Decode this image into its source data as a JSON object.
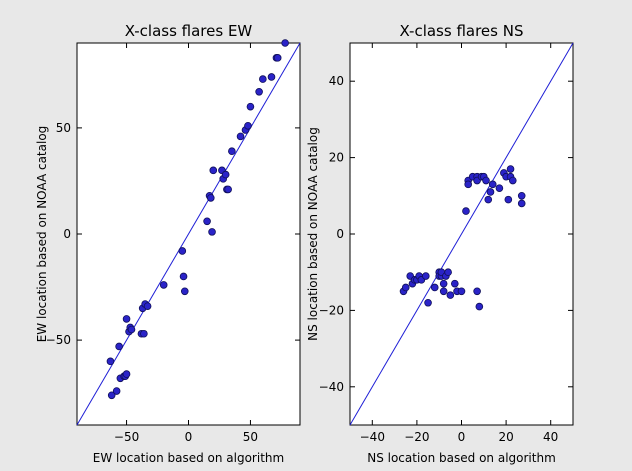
{
  "figure": {
    "background": "#e8e8e8"
  },
  "chart_data": [
    {
      "type": "scatter",
      "title": "X-class flares EW",
      "xlabel": "EW location based on algorithm",
      "ylabel": "EW location based on NOAA catalog",
      "xlim": [
        -90,
        90
      ],
      "ylim": [
        -90,
        90
      ],
      "xticks": [
        -50,
        0,
        50
      ],
      "yticks": [
        -50,
        0,
        50
      ],
      "xtick_labels": [
        "−50",
        "0",
        "50"
      ],
      "ytick_labels": [
        "−50",
        "0",
        "50"
      ],
      "reference_line": "y = x",
      "line_color": "#1f1fd6",
      "marker_color": "#2a23c8",
      "grid": false,
      "series": [
        {
          "x": [
            -63,
            -62,
            -58,
            -56,
            -55,
            -52,
            -51,
            -50,
            -50,
            -48,
            -47,
            -46,
            -38,
            -37,
            -36,
            -35,
            -33,
            -20,
            -5,
            -4,
            -3,
            15,
            17,
            18,
            19,
            20,
            27,
            28,
            30,
            31,
            32,
            35,
            42,
            46,
            48,
            50,
            57,
            60,
            67,
            71,
            72,
            78
          ],
          "y": [
            -60,
            -76,
            -74,
            -53,
            -68,
            -67,
            -67,
            -40,
            -66,
            -46,
            -44,
            -45,
            -47,
            -35,
            -47,
            -33,
            -34,
            -24,
            -8,
            -20,
            -27,
            6,
            18,
            17,
            1,
            30,
            30,
            26,
            28,
            21,
            21,
            39,
            46,
            49,
            51,
            60,
            67,
            73,
            74,
            83,
            83,
            90
          ]
        }
      ]
    },
    {
      "type": "scatter",
      "title": "X-class flares NS",
      "xlabel": "NS location based on algorithm",
      "ylabel": "NS location based on NOAA catalog",
      "xlim": [
        -50,
        50
      ],
      "ylim": [
        -50,
        50
      ],
      "xticks": [
        -40,
        -20,
        0,
        20,
        40
      ],
      "yticks": [
        -40,
        -20,
        0,
        20,
        40
      ],
      "xtick_labels": [
        "−40",
        "−20",
        "0",
        "20",
        "40"
      ],
      "ytick_labels": [
        "−40",
        "−20",
        "0",
        "20",
        "40"
      ],
      "reference_line": "y = x",
      "line_color": "#1f1fd6",
      "marker_color": "#2a23c8",
      "grid": false,
      "series": [
        {
          "x": [
            -26,
            -25,
            -23,
            -22,
            -21,
            -20,
            -19,
            -18,
            -16,
            -15,
            -12,
            -10,
            -10,
            -9,
            -9,
            -8,
            -8,
            -7,
            -6,
            -5,
            -3,
            -2,
            0,
            2,
            3,
            3,
            5,
            7,
            7,
            7,
            8,
            9,
            10,
            11,
            12,
            13,
            14,
            17,
            19,
            20,
            21,
            22,
            22,
            23,
            27,
            27
          ],
          "y": [
            -15,
            -14,
            -11,
            -13,
            -12,
            -12,
            -11,
            -12,
            -11,
            -18,
            -14,
            -10,
            -11,
            -11,
            -10,
            -13,
            -15,
            -11,
            -10,
            -16,
            -13,
            -15,
            -15,
            6,
            14,
            13,
            15,
            15,
            14,
            -15,
            -19,
            15,
            15,
            14,
            9,
            11,
            13,
            12,
            16,
            15,
            9,
            15,
            17,
            14,
            10,
            8
          ]
        }
      ]
    }
  ]
}
